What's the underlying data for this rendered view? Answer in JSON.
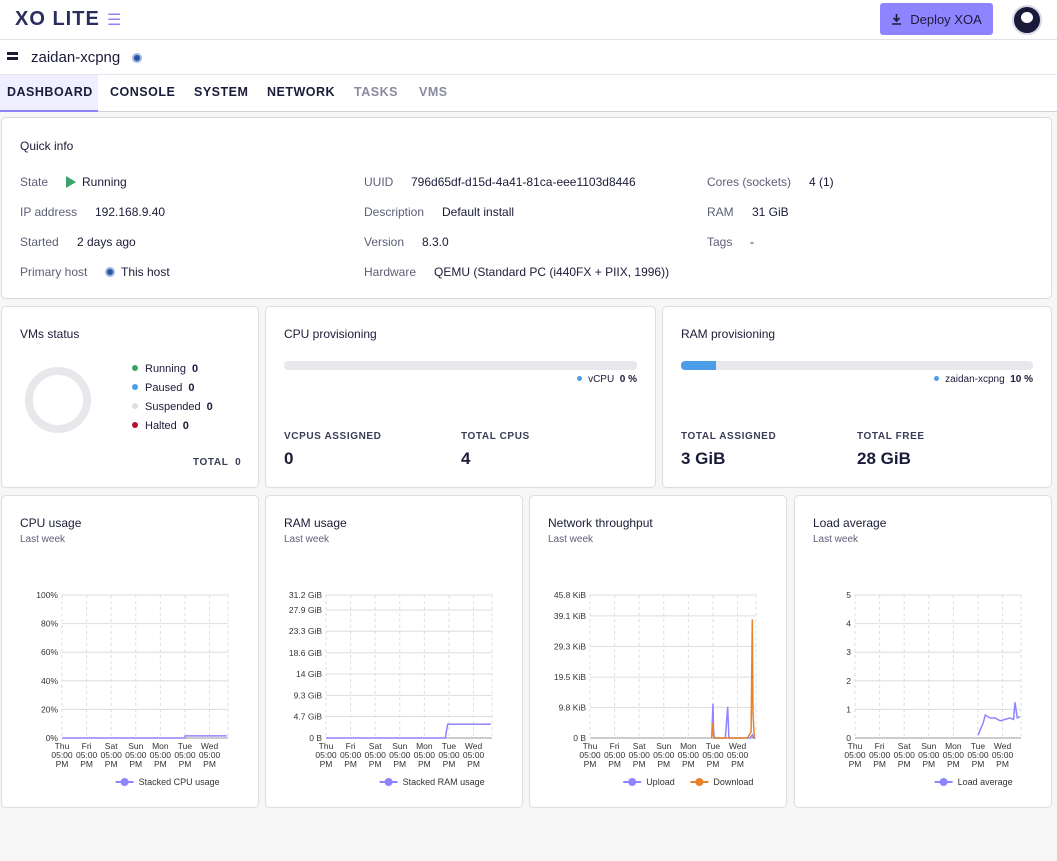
{
  "app": {
    "logo": "XO LITE",
    "menu_icon": "hamburger-icon",
    "deploy_label": "Deploy XOA",
    "deploy_icon": "download-icon"
  },
  "host": {
    "name": "zaidan-xcpng"
  },
  "tabs": [
    {
      "label": "DASHBOARD",
      "active": true,
      "disabled": false
    },
    {
      "label": "CONSOLE",
      "active": false,
      "disabled": false
    },
    {
      "label": "SYSTEM",
      "active": false,
      "disabled": false
    },
    {
      "label": "NETWORK",
      "active": false,
      "disabled": false
    },
    {
      "label": "TASKS",
      "active": false,
      "disabled": true
    },
    {
      "label": "VMS",
      "active": false,
      "disabled": true
    }
  ],
  "quick_info": {
    "title": "Quick info",
    "state_label": "State",
    "state_value": "Running",
    "ip_label": "IP address",
    "ip_value": "192.168.9.40",
    "started_label": "Started",
    "started_value": "2 days ago",
    "primary_label": "Primary host",
    "primary_value": "This host",
    "uuid_label": "UUID",
    "uuid_value": "796d65df-d15d-4a41-81ca-eee1103d8446",
    "desc_label": "Description",
    "desc_value": "Default install",
    "version_label": "Version",
    "version_value": "8.3.0",
    "hardware_label": "Hardware",
    "hardware_value": "QEMU (Standard PC (i440FX + PIIX, 1996))",
    "cores_label": "Cores (sockets)",
    "cores_value": "4 (1)",
    "ram_label": "RAM",
    "ram_value": "31 GiB",
    "tags_label": "Tags",
    "tags_value": "-"
  },
  "vms_status": {
    "title": "VMs status",
    "items": [
      {
        "label": "Running",
        "count": "0",
        "color": "#3aa36b"
      },
      {
        "label": "Paused",
        "count": "0",
        "color": "#4b9de8"
      },
      {
        "label": "Suspended",
        "count": "0",
        "color": "#dcdce2"
      },
      {
        "label": "Halted",
        "count": "0",
        "color": "#b3122f"
      }
    ],
    "total_label": "TOTAL",
    "total_value": "0"
  },
  "cpu_prov": {
    "title": "CPU provisioning",
    "legend_label": "vCPU",
    "legend_value": "0 %",
    "fill_fraction": 0.0,
    "assigned_label": "VCPUS ASSIGNED",
    "assigned_value": "0",
    "total_label": "TOTAL CPUS",
    "total_value": "4"
  },
  "ram_prov": {
    "title": "RAM provisioning",
    "legend_label": "zaidan-xcpng",
    "legend_value": "10 %",
    "fill_fraction": 0.1,
    "assigned_label": "TOTAL ASSIGNED",
    "assigned_value": "3 GiB",
    "free_label": "TOTAL FREE",
    "free_value": "28 GiB"
  },
  "charts": {
    "subtitle": "Last week",
    "x_ticks": [
      [
        "Thu",
        "05:00",
        "PM"
      ],
      [
        "Fri",
        "05:00",
        "PM"
      ],
      [
        "Sat",
        "05:00",
        "PM"
      ],
      [
        "Sun",
        "05:00",
        "PM"
      ],
      [
        "Mon",
        "05:00",
        "PM"
      ],
      [
        "Tue",
        "05:00",
        "PM"
      ],
      [
        "Wed",
        "05:00",
        "PM"
      ]
    ]
  },
  "chart_data": [
    {
      "type": "line",
      "title": "CPU usage",
      "y_ticks": [
        "100%",
        "80%",
        "60%",
        "40%",
        "20%",
        "0%"
      ],
      "ylim": [
        0,
        100
      ],
      "series": [
        {
          "name": "Stacked CPU usage",
          "color": "#8f84ff",
          "x": [
            0,
            1,
            2,
            3,
            4,
            5,
            5.01,
            5.5,
            6,
            6.7
          ],
          "y": [
            0,
            0,
            0,
            0,
            0,
            0,
            1.5,
            1.5,
            1.5,
            1.5
          ]
        }
      ]
    },
    {
      "type": "line",
      "title": "RAM usage",
      "y_ticks": [
        "31.2 GiB",
        "27.9 GiB",
        "23.3 GiB",
        "18.6 GiB",
        "14 GiB",
        "9.3 GiB",
        "4.7 GiB",
        "0 B"
      ],
      "y_tick_values": [
        31.2,
        27.9,
        23.3,
        18.6,
        14,
        9.3,
        4.7,
        0
      ],
      "ylim": [
        0,
        31.2
      ],
      "series": [
        {
          "name": "Stacked RAM usage",
          "color": "#8f84ff",
          "x": [
            0,
            1,
            2,
            3,
            4,
            4.85,
            4.95,
            5.5,
            6,
            6.7
          ],
          "y": [
            0,
            0,
            0,
            0,
            0,
            0,
            3,
            3,
            3,
            3
          ]
        }
      ]
    },
    {
      "type": "line",
      "title": "Network throughput",
      "y_ticks": [
        "45.8 KiB",
        "39.1 KiB",
        "29.3 KiB",
        "19.5 KiB",
        "9.8 KiB",
        "0 B"
      ],
      "y_tick_values": [
        45.8,
        39.1,
        29.3,
        19.5,
        9.8,
        0
      ],
      "ylim": [
        0,
        45.8
      ],
      "series": [
        {
          "name": "Upload",
          "color": "#8f84ff",
          "x": [
            4.95,
            5.0,
            5.02,
            5.05,
            5.1,
            5.5,
            5.6,
            5.65,
            5.7,
            6.0,
            6.5,
            6.6,
            6.65,
            6.7
          ],
          "y": [
            0,
            11,
            3,
            0,
            0,
            0,
            10,
            0,
            0,
            0,
            0,
            1,
            0,
            0
          ]
        },
        {
          "name": "Download",
          "color": "#e8812b",
          "x": [
            4.95,
            5.0,
            5.02,
            5.05,
            5.1,
            5.5,
            6.0,
            6.4,
            6.55,
            6.6,
            6.63,
            6.68,
            6.7
          ],
          "y": [
            0,
            5,
            1,
            0,
            0,
            0,
            0,
            0,
            2,
            38,
            8,
            0,
            0
          ]
        }
      ]
    },
    {
      "type": "line",
      "title": "Load average",
      "y_ticks": [
        "5",
        "4",
        "3",
        "2",
        "1",
        "0"
      ],
      "ylim": [
        0,
        5
      ],
      "series": [
        {
          "name": "Load average",
          "color": "#8f84ff",
          "x": [
            5.0,
            5.1,
            5.2,
            5.3,
            5.4,
            5.5,
            5.7,
            5.9,
            6.1,
            6.3,
            6.45,
            6.5,
            6.6,
            6.7
          ],
          "y": [
            0.1,
            0.3,
            0.5,
            0.8,
            0.75,
            0.7,
            0.7,
            0.6,
            0.65,
            0.7,
            0.65,
            1.25,
            0.7,
            0.75
          ]
        }
      ]
    }
  ]
}
